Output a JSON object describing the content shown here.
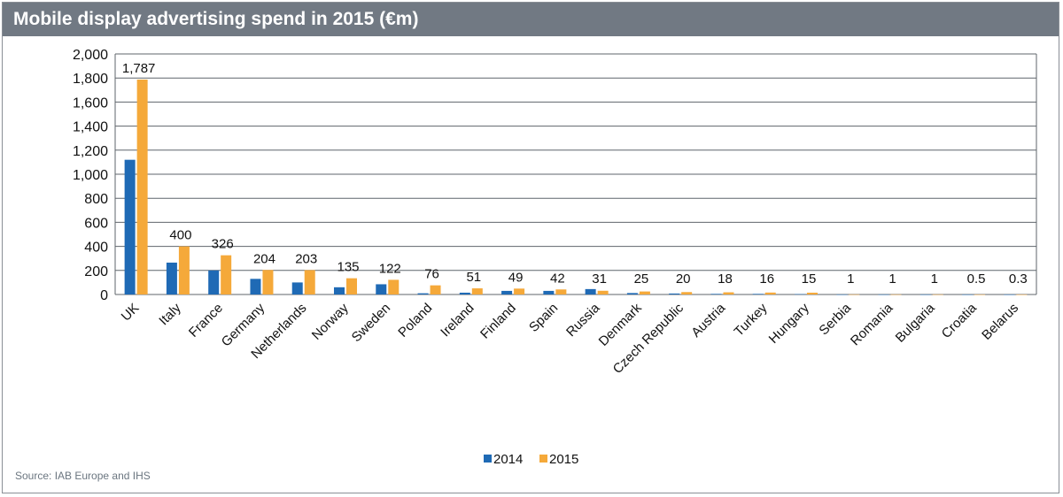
{
  "title": "Mobile display advertising spend in 2015 (€m)",
  "source": "Source: IAB Europe and IHS",
  "colors": {
    "header_bg": "#717983",
    "series_2014": "#1f6ab5",
    "series_2015": "#f5a93a",
    "grid": "#5c6268"
  },
  "chart_data": {
    "type": "bar",
    "title": "Mobile display advertising spend in 2015 (€m)",
    "categories": [
      "UK",
      "Italy",
      "France",
      "Germany",
      "Netherlands",
      "Norway",
      "Sweden",
      "Poland",
      "Ireland",
      "Finland",
      "Spain",
      "Russia",
      "Denmark",
      "Czech Republic",
      "Austria",
      "Turkey",
      "Hungary",
      "Serbia",
      "Romania",
      "Bulgaria",
      "Croatia",
      "Belarus"
    ],
    "series": [
      {
        "name": "2014",
        "color": "#1f6ab5",
        "values": [
          1120,
          265,
          200,
          130,
          100,
          60,
          85,
          10,
          15,
          30,
          30,
          45,
          12,
          8,
          5,
          5,
          3,
          0.5,
          0.5,
          0.5,
          0.3,
          0.2
        ]
      },
      {
        "name": "2015",
        "color": "#f5a93a",
        "values": [
          1787,
          400,
          326,
          204,
          203,
          135,
          122,
          76,
          51,
          49,
          42,
          31,
          25,
          20,
          18,
          16,
          15,
          1,
          1,
          1,
          0.5,
          0.3
        ]
      }
    ],
    "data_labels": [
      "1,787",
      "400",
      "326",
      "204",
      "203",
      "135",
      "122",
      "76",
      "51",
      "49",
      "42",
      "31",
      "25",
      "20",
      "18",
      "16",
      "15",
      "1",
      "1",
      "1",
      "0.5",
      "0.3"
    ],
    "ylim": [
      0,
      2000
    ],
    "yticks": [
      0,
      200,
      400,
      600,
      800,
      1000,
      1200,
      1400,
      1600,
      1800,
      2000
    ],
    "ytick_labels": [
      "0",
      "200",
      "400",
      "600",
      "800",
      "1,000",
      "1,200",
      "1,400",
      "1,600",
      "1,800",
      "2,000"
    ],
    "xlabel": "",
    "ylabel": "",
    "grid": true,
    "legend": {
      "position": "bottom",
      "entries": [
        "2014",
        "2015"
      ]
    }
  }
}
